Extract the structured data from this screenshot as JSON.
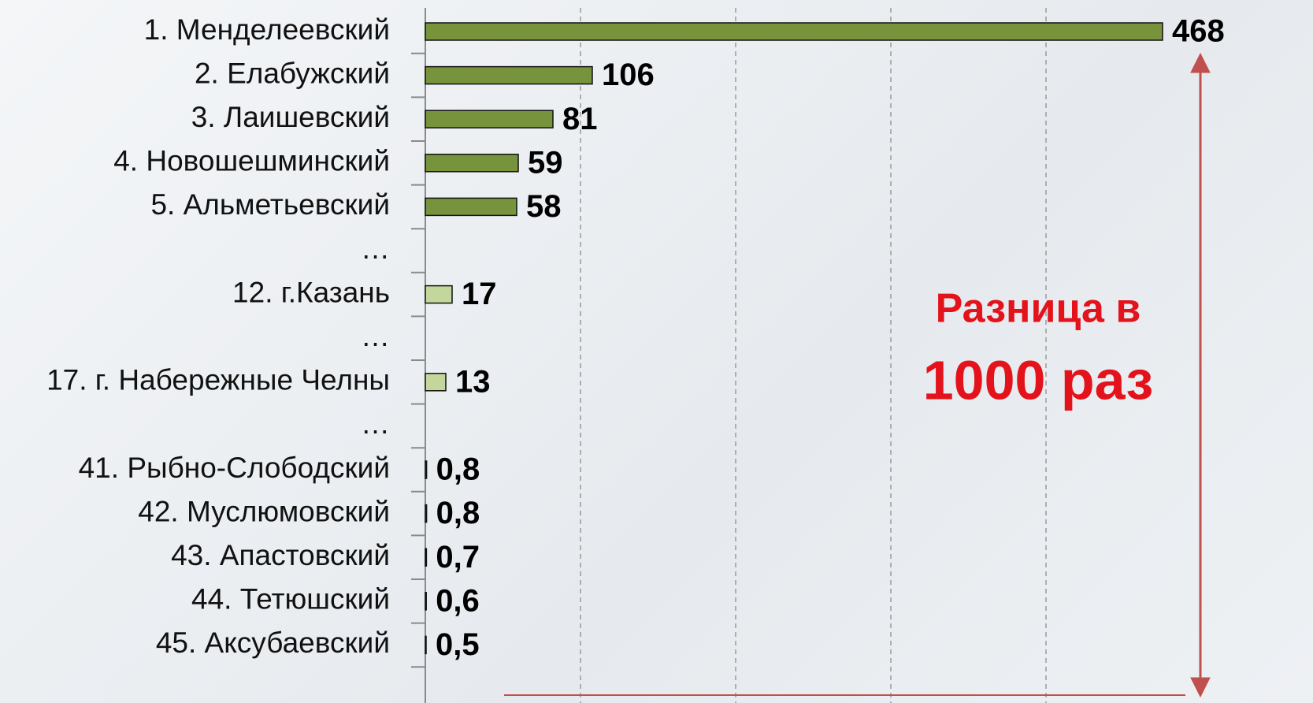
{
  "chart_data": {
    "type": "bar",
    "orientation": "horizontal",
    "categories": [
      "1. Менделеевский",
      "2. Елабужский",
      "3. Лаишевский",
      "4. Новошешминский",
      "5. Альметьевский",
      "…",
      "12. г.Казань",
      "…",
      "17. г. Набережные Челны",
      "…",
      "41. Рыбно-Слободский",
      "42. Муслюмовский",
      "43. Апастовский",
      "44. Тетюшский",
      "45. Аксубаевский"
    ],
    "values": [
      468,
      106,
      81,
      59,
      58,
      null,
      17,
      null,
      13,
      null,
      0.8,
      0.8,
      0.7,
      0.6,
      0.5
    ],
    "value_labels": [
      "468",
      "106",
      "81",
      "59",
      "58",
      null,
      "17",
      null,
      "13",
      null,
      "0,8",
      "0,8",
      "0,7",
      "0,6",
      "0,5"
    ],
    "colors": [
      "#77933c",
      "#77933c",
      "#77933c",
      "#77933c",
      "#77933c",
      null,
      "#c3d69b",
      null,
      "#c3d69b",
      null,
      "#c0504d",
      "#c0504d",
      "#c0504d",
      "#c0504d",
      "#c0504d"
    ],
    "xlim": [
      0,
      480
    ],
    "annotation": [
      "Разница в",
      "1000 раз"
    ]
  }
}
